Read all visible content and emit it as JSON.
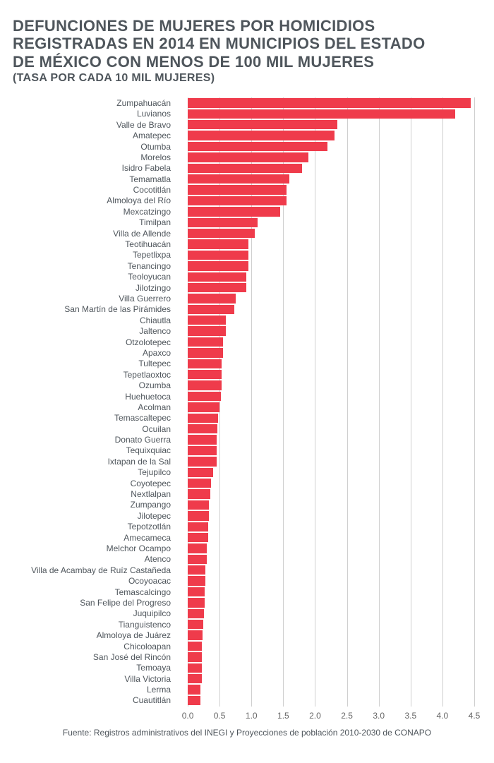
{
  "title_lines": [
    "DEFUNCIONES DE MUJERES POR HOMICIDIOS",
    "REGISTRADAS EN 2014 EN MUNICIPIOS DEL ESTADO",
    "DE MÉXICO CON MENOS DE 100 MIL MUJERES"
  ],
  "subtitle": "(TASA POR CADA 10 MIL MUJERES)",
  "source": "Fuente: Registros administrativos del INEGI y Proyecciones de población 2010-2030 de CONAPO",
  "chart": {
    "type": "bar-horizontal",
    "bar_color": "#ef3b4b",
    "grid_color": "#cfcfcf",
    "text_color": "#4f565c",
    "title_color": "#4f565c",
    "tick_color": "#666666",
    "background_color": "#ffffff",
    "title_fontsize": 22,
    "subtitle_fontsize": 16,
    "ylabel_fontsize": 12,
    "xtick_fontsize": 12,
    "source_fontsize": 12,
    "row_height": 15.4,
    "label_col_width": 230,
    "plot_right_pad": 10,
    "xlim": [
      -0.2,
      4.5
    ],
    "xticks": [
      0.0,
      0.5,
      1.0,
      1.5,
      2.0,
      2.5,
      3.0,
      3.5,
      4.0,
      4.5
    ],
    "categories": [
      "Zumpahuacán",
      "Luvianos",
      "Valle de Bravo",
      "Amatepec",
      "Otumba",
      "Morelos",
      "Isidro Fabela",
      "Temamatla",
      "Cocotitlán",
      "Almoloya del Río",
      "Mexcatzingo",
      "Timilpan",
      "Villa de Allende",
      "Teotihuacán",
      "Tepetlixpa",
      "Tenancingo",
      "Teoloyucan",
      "Jilotzingo",
      "Villa Guerrero",
      "San Martín de las Pirámides",
      "Chiautla",
      "Jaltenco",
      "Otzolotepec",
      "Apaxco",
      "Tultepec",
      "Tepetlaoxtoc",
      "Ozumba",
      "Huehuetoca",
      "Acolman",
      "Temascaltepec",
      "Ocuilan",
      "Donato Guerra",
      "Tequixquiac",
      "Ixtapan de la Sal",
      "Tejupilco",
      "Coyotepec",
      "Nextlalpan",
      "Zumpango",
      "Jilotepec",
      "Tepotzotlán",
      "Amecameca",
      "Melchor Ocampo",
      "Atenco",
      "Villa de Acambay de Ruíz Castañeda",
      "Ocoyoacac",
      "Temascalcingo",
      "San Felipe del Progreso",
      "Juquipilco",
      "Tianguistenco",
      "Almoloya de Juárez",
      "Chicoloapan",
      "San José del Rincón",
      "Temoaya",
      "Villa Victoria",
      "Lerma",
      "Cuautitlán"
    ],
    "values": [
      4.45,
      4.2,
      2.35,
      2.3,
      2.2,
      1.9,
      1.8,
      1.6,
      1.55,
      1.55,
      1.45,
      1.1,
      1.05,
      0.95,
      0.95,
      0.95,
      0.92,
      0.92,
      0.75,
      0.73,
      0.6,
      0.6,
      0.55,
      0.55,
      0.53,
      0.53,
      0.53,
      0.52,
      0.5,
      0.48,
      0.47,
      0.45,
      0.45,
      0.45,
      0.4,
      0.36,
      0.35,
      0.33,
      0.33,
      0.32,
      0.32,
      0.3,
      0.3,
      0.28,
      0.28,
      0.27,
      0.27,
      0.26,
      0.24,
      0.23,
      0.22,
      0.22,
      0.22,
      0.22,
      0.2,
      0.2
    ]
  }
}
